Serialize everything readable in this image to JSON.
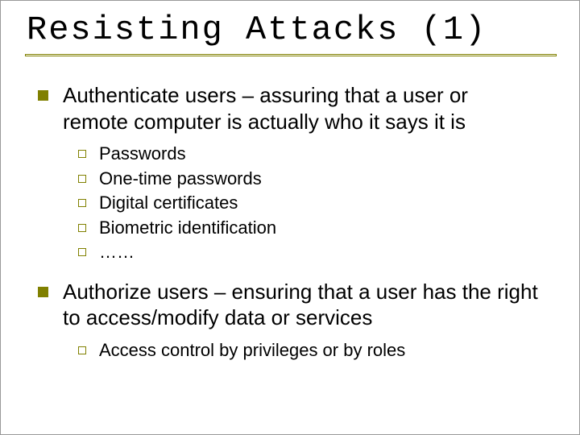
{
  "slide": {
    "title": "Resisting Attacks (1)",
    "title_font": "Courier New",
    "title_fontsize": 42,
    "accent_color": "#808000",
    "background_color": "#ffffff",
    "text_color": "#000000",
    "body_font": "Arial",
    "body_fontsize_l1": 26,
    "body_fontsize_l2": 22,
    "bullets": [
      {
        "text": "Authenticate users – assuring that a user or remote computer is actually who it says it is",
        "sub": [
          "Passwords",
          "One-time passwords",
          "Digital certificates",
          "Biometric identification",
          "……"
        ]
      },
      {
        "text": "Authorize users – ensuring that  a user has the right to access/modify data or services",
        "sub": [
          "Access control by privileges or by roles"
        ]
      }
    ]
  }
}
